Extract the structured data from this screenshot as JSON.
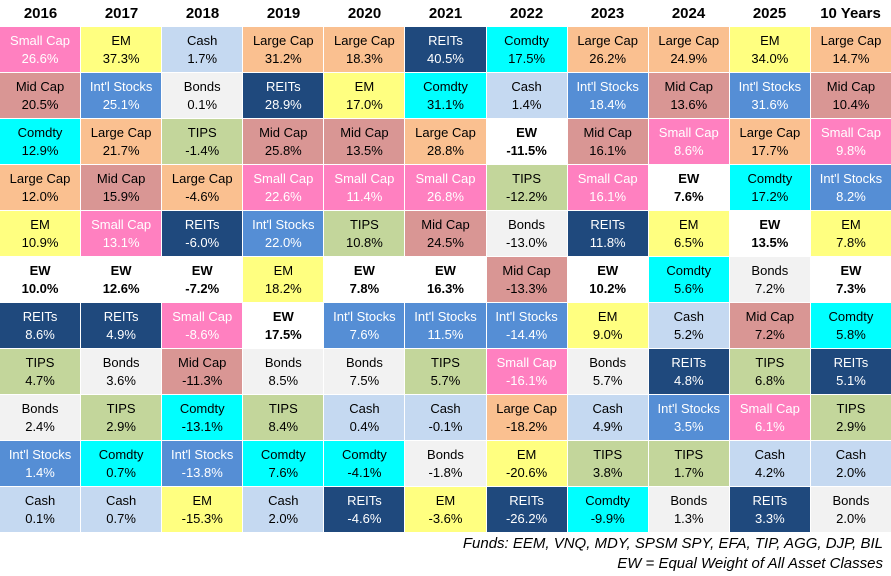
{
  "asset_styles": {
    "Small Cap": {
      "bg": "#FF80C0",
      "fg": "#FFFFFF",
      "bold": false
    },
    "Mid Cap": {
      "bg": "#D99694",
      "fg": "#000000",
      "bold": false
    },
    "Large Cap": {
      "bg": "#FAC090",
      "fg": "#000000",
      "bold": false
    },
    "EM": {
      "bg": "#FFFF80",
      "fg": "#000000",
      "bold": false
    },
    "Int'l Stocks": {
      "bg": "#558ED5",
      "fg": "#FFFFFF",
      "bold": false
    },
    "REITs": {
      "bg": "#1F497D",
      "fg": "#FFFFFF",
      "bold": false
    },
    "Comdty": {
      "bg": "#00FFFF",
      "fg": "#000000",
      "bold": false
    },
    "TIPS": {
      "bg": "#C3D69B",
      "fg": "#000000",
      "bold": false
    },
    "Bonds": {
      "bg": "#F2F2F2",
      "fg": "#000000",
      "bold": false
    },
    "Cash": {
      "bg": "#C5D9F1",
      "fg": "#000000",
      "bold": false
    },
    "EW": {
      "bg": "#FFFFFF",
      "fg": "#000000",
      "bold": true
    }
  },
  "chart_data": {
    "type": "table",
    "title": "Asset Class Returns Quilt (ranked best to worst per year)",
    "legend_position": "none",
    "columns": [
      {
        "header": "2016",
        "cells": [
          {
            "asset": "Small Cap",
            "value": "26.6%"
          },
          {
            "asset": "Mid Cap",
            "value": "20.5%"
          },
          {
            "asset": "Comdty",
            "value": "12.9%"
          },
          {
            "asset": "Large Cap",
            "value": "12.0%"
          },
          {
            "asset": "EM",
            "value": "10.9%"
          },
          {
            "asset": "EW",
            "value": "10.0%"
          },
          {
            "asset": "REITs",
            "value": "8.6%"
          },
          {
            "asset": "TIPS",
            "value": "4.7%"
          },
          {
            "asset": "Bonds",
            "value": "2.4%"
          },
          {
            "asset": "Int'l Stocks",
            "value": "1.4%"
          },
          {
            "asset": "Cash",
            "value": "0.1%"
          }
        ]
      },
      {
        "header": "2017",
        "cells": [
          {
            "asset": "EM",
            "value": "37.3%"
          },
          {
            "asset": "Int'l Stocks",
            "value": "25.1%"
          },
          {
            "asset": "Large Cap",
            "value": "21.7%"
          },
          {
            "asset": "Mid Cap",
            "value": "15.9%"
          },
          {
            "asset": "Small Cap",
            "value": "13.1%"
          },
          {
            "asset": "EW",
            "value": "12.6%"
          },
          {
            "asset": "REITs",
            "value": "4.9%"
          },
          {
            "asset": "Bonds",
            "value": "3.6%"
          },
          {
            "asset": "TIPS",
            "value": "2.9%"
          },
          {
            "asset": "Comdty",
            "value": "0.7%"
          },
          {
            "asset": "Cash",
            "value": "0.7%"
          }
        ]
      },
      {
        "header": "2018",
        "cells": [
          {
            "asset": "Cash",
            "value": "1.7%"
          },
          {
            "asset": "Bonds",
            "value": "0.1%"
          },
          {
            "asset": "TIPS",
            "value": "-1.4%"
          },
          {
            "asset": "Large Cap",
            "value": "-4.6%"
          },
          {
            "asset": "REITs",
            "value": "-6.0%"
          },
          {
            "asset": "EW",
            "value": "-7.2%"
          },
          {
            "asset": "Small Cap",
            "value": "-8.6%"
          },
          {
            "asset": "Mid Cap",
            "value": "-11.3%"
          },
          {
            "asset": "Comdty",
            "value": "-13.1%"
          },
          {
            "asset": "Int'l Stocks",
            "value": "-13.8%"
          },
          {
            "asset": "EM",
            "value": "-15.3%"
          }
        ]
      },
      {
        "header": "2019",
        "cells": [
          {
            "asset": "Large Cap",
            "value": "31.2%"
          },
          {
            "asset": "REITs",
            "value": "28.9%"
          },
          {
            "asset": "Mid Cap",
            "value": "25.8%"
          },
          {
            "asset": "Small Cap",
            "value": "22.6%"
          },
          {
            "asset": "Int'l Stocks",
            "value": "22.0%"
          },
          {
            "asset": "EM",
            "value": "18.2%"
          },
          {
            "asset": "EW",
            "value": "17.5%"
          },
          {
            "asset": "Bonds",
            "value": "8.5%"
          },
          {
            "asset": "TIPS",
            "value": "8.4%"
          },
          {
            "asset": "Comdty",
            "value": "7.6%"
          },
          {
            "asset": "Cash",
            "value": "2.0%"
          }
        ]
      },
      {
        "header": "2020",
        "cells": [
          {
            "asset": "Large Cap",
            "value": "18.3%"
          },
          {
            "asset": "EM",
            "value": "17.0%"
          },
          {
            "asset": "Mid Cap",
            "value": "13.5%"
          },
          {
            "asset": "Small Cap",
            "value": "11.4%"
          },
          {
            "asset": "TIPS",
            "value": "10.8%"
          },
          {
            "asset": "EW",
            "value": "7.8%"
          },
          {
            "asset": "Int'l Stocks",
            "value": "7.6%"
          },
          {
            "asset": "Bonds",
            "value": "7.5%"
          },
          {
            "asset": "Cash",
            "value": "0.4%"
          },
          {
            "asset": "Comdty",
            "value": "-4.1%"
          },
          {
            "asset": "REITs",
            "value": "-4.6%"
          }
        ]
      },
      {
        "header": "2021",
        "cells": [
          {
            "asset": "REITs",
            "value": "40.5%"
          },
          {
            "asset": "Comdty",
            "value": "31.1%"
          },
          {
            "asset": "Large Cap",
            "value": "28.8%"
          },
          {
            "asset": "Small Cap",
            "value": "26.8%"
          },
          {
            "asset": "Mid Cap",
            "value": "24.5%"
          },
          {
            "asset": "EW",
            "value": "16.3%"
          },
          {
            "asset": "Int'l Stocks",
            "value": "11.5%"
          },
          {
            "asset": "TIPS",
            "value": "5.7%"
          },
          {
            "asset": "Cash",
            "value": "-0.1%"
          },
          {
            "asset": "Bonds",
            "value": "-1.8%"
          },
          {
            "asset": "EM",
            "value": "-3.6%"
          }
        ]
      },
      {
        "header": "2022",
        "cells": [
          {
            "asset": "Comdty",
            "value": "17.5%"
          },
          {
            "asset": "Cash",
            "value": "1.4%"
          },
          {
            "asset": "EW",
            "value": "-11.5%"
          },
          {
            "asset": "TIPS",
            "value": "-12.2%"
          },
          {
            "asset": "Bonds",
            "value": "-13.0%"
          },
          {
            "asset": "Mid Cap",
            "value": "-13.3%"
          },
          {
            "asset": "Int'l Stocks",
            "value": "-14.4%"
          },
          {
            "asset": "Small Cap",
            "value": "-16.1%"
          },
          {
            "asset": "Large Cap",
            "value": "-18.2%"
          },
          {
            "asset": "EM",
            "value": "-20.6%"
          },
          {
            "asset": "REITs",
            "value": "-26.2%"
          }
        ]
      },
      {
        "header": "2023",
        "cells": [
          {
            "asset": "Large Cap",
            "value": "26.2%"
          },
          {
            "asset": "Int'l Stocks",
            "value": "18.4%"
          },
          {
            "asset": "Mid Cap",
            "value": "16.1%"
          },
          {
            "asset": "Small Cap",
            "value": "16.1%"
          },
          {
            "asset": "REITs",
            "value": "11.8%"
          },
          {
            "asset": "EW",
            "value": "10.2%"
          },
          {
            "asset": "EM",
            "value": "9.0%"
          },
          {
            "asset": "Bonds",
            "value": "5.7%"
          },
          {
            "asset": "Cash",
            "value": "4.9%"
          },
          {
            "asset": "TIPS",
            "value": "3.8%"
          },
          {
            "asset": "Comdty",
            "value": "-9.9%"
          }
        ]
      },
      {
        "header": "2024",
        "cells": [
          {
            "asset": "Large Cap",
            "value": "24.9%"
          },
          {
            "asset": "Mid Cap",
            "value": "13.6%"
          },
          {
            "asset": "Small Cap",
            "value": "8.6%"
          },
          {
            "asset": "EW",
            "value": "7.6%"
          },
          {
            "asset": "EM",
            "value": "6.5%"
          },
          {
            "asset": "Comdty",
            "value": "5.6%"
          },
          {
            "asset": "Cash",
            "value": "5.2%"
          },
          {
            "asset": "REITs",
            "value": "4.8%"
          },
          {
            "asset": "Int'l Stocks",
            "value": "3.5%"
          },
          {
            "asset": "TIPS",
            "value": "1.7%"
          },
          {
            "asset": "Bonds",
            "value": "1.3%"
          }
        ]
      },
      {
        "header": "2025",
        "cells": [
          {
            "asset": "EM",
            "value": "34.0%"
          },
          {
            "asset": "Int'l Stocks",
            "value": "31.6%"
          },
          {
            "asset": "Large Cap",
            "value": "17.7%"
          },
          {
            "asset": "Comdty",
            "value": "17.2%"
          },
          {
            "asset": "EW",
            "value": "13.5%"
          },
          {
            "asset": "Bonds",
            "value": "7.2%"
          },
          {
            "asset": "Mid Cap",
            "value": "7.2%"
          },
          {
            "asset": "TIPS",
            "value": "6.8%"
          },
          {
            "asset": "Small Cap",
            "value": "6.1%"
          },
          {
            "asset": "Cash",
            "value": "4.2%"
          },
          {
            "asset": "REITs",
            "value": "3.3%"
          }
        ]
      },
      {
        "header": "10 Years",
        "cells": [
          {
            "asset": "Large Cap",
            "value": "14.7%"
          },
          {
            "asset": "Mid Cap",
            "value": "10.4%"
          },
          {
            "asset": "Small Cap",
            "value": "9.8%"
          },
          {
            "asset": "Int'l Stocks",
            "value": "8.2%"
          },
          {
            "asset": "EM",
            "value": "7.8%"
          },
          {
            "asset": "EW",
            "value": "7.3%"
          },
          {
            "asset": "Comdty",
            "value": "5.8%"
          },
          {
            "asset": "REITs",
            "value": "5.1%"
          },
          {
            "asset": "TIPS",
            "value": "2.9%"
          },
          {
            "asset": "Cash",
            "value": "2.0%"
          },
          {
            "asset": "Bonds",
            "value": "2.0%"
          }
        ]
      }
    ]
  },
  "footer": {
    "line1": "Funds: EEM, VNQ, MDY, SPSM SPY, EFA, TIP, AGG, DJP, BIL",
    "line2": "EW = Equal Weight of All Asset Classes"
  }
}
